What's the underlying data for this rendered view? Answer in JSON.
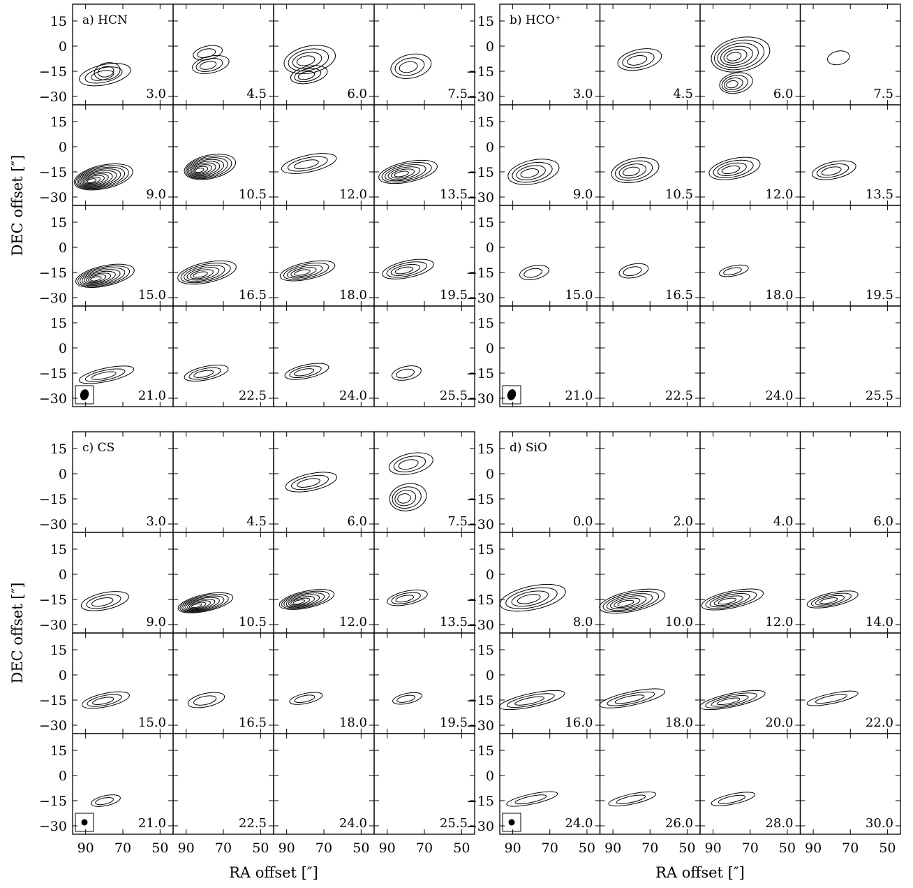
{
  "chart_data": [
    {
      "type": "contour",
      "panel_label": "a) HCN",
      "velocities": [
        "3.0",
        "4.5",
        "6.0",
        "7.5",
        "9.0",
        "10.5",
        "12.0",
        "13.5",
        "15.0",
        "16.5",
        "18.0",
        "19.5",
        "21.0",
        "22.5",
        "24.0",
        "25.5"
      ],
      "ylabel": "DEC offset [″]",
      "xlabel": "",
      "xlim": [
        97,
        43
      ],
      "ylim": [
        -35,
        25
      ],
      "xticks": [
        "90",
        "70",
        "50"
      ],
      "yticks": [
        "15",
        "0",
        "−15",
        "−30"
      ],
      "beam_shown": true,
      "blobs": [
        [
          [
            -18,
            -17,
            6,
            14,
            3
          ],
          [
            -15,
            -15,
            5,
            7,
            2
          ]
        ],
        [
          [
            -11,
            -11,
            5,
            10,
            3
          ],
          [
            -15,
            -4,
            4,
            8,
            2
          ]
        ],
        [
          [
            -13,
            -8,
            8,
            14,
            4
          ],
          [
            -14,
            -17,
            5,
            10,
            3
          ]
        ],
        [
          [
            -12,
            -12,
            7,
            11,
            3
          ]
        ],
        [
          [
            -20,
            -18,
            7,
            16,
            10
          ]
        ],
        [
          [
            -12,
            -12,
            7,
            14,
            9
          ]
        ],
        [
          [
            -14,
            -10,
            5,
            15,
            3
          ]
        ],
        [
          [
            -16,
            -15,
            6,
            16,
            6
          ]
        ],
        [
          [
            -18,
            -17,
            6,
            16,
            8
          ]
        ],
        [
          [
            -16,
            -15,
            6,
            16,
            6
          ]
        ],
        [
          [
            -16,
            -14,
            5,
            15,
            5
          ]
        ],
        [
          [
            -16,
            -13,
            5,
            14,
            4
          ]
        ],
        [
          [
            -16,
            -16,
            4,
            15,
            3
          ]
        ],
        [
          [
            -17,
            -15,
            4,
            12,
            3
          ]
        ],
        [
          [
            -17,
            -14,
            4,
            12,
            3
          ]
        ],
        [
          [
            -18,
            -15,
            4,
            8,
            2
          ]
        ]
      ]
    },
    {
      "type": "contour",
      "panel_label": "b) HCO⁺",
      "velocities": [
        "3.0",
        "4.5",
        "6.0",
        "7.5",
        "9.0",
        "10.5",
        "12.0",
        "13.5",
        "15.0",
        "16.5",
        "18.0",
        "19.5",
        "21.0",
        "22.5",
        "24.0",
        "25.5"
      ],
      "ylabel": "",
      "xlabel": "",
      "xlim": [
        97,
        43
      ],
      "ylim": [
        -35,
        25
      ],
      "xticks": [
        "90",
        "70",
        "50"
      ],
      "yticks": [
        "15",
        "0",
        "−15",
        "−30"
      ],
      "beam_shown": true,
      "blobs": [
        [],
        [
          [
            -8,
            -8,
            6,
            12,
            3
          ]
        ],
        [
          [
            -7,
            -5,
            10,
            16,
            6
          ],
          [
            -13,
            -22,
            6,
            9,
            4
          ]
        ],
        [
          [
            -10,
            -7,
            4,
            6,
            1
          ]
        ],
        [
          [
            -16,
            -15,
            7,
            14,
            4
          ]
        ],
        [
          [
            -14,
            -14,
            7,
            13,
            4
          ]
        ],
        [
          [
            -15,
            -13,
            6,
            14,
            4
          ]
        ],
        [
          [
            -16,
            -14,
            5,
            12,
            3
          ]
        ],
        [
          [
            -15,
            -15,
            4,
            8,
            2
          ]
        ],
        [
          [
            -16,
            -14,
            4,
            8,
            2
          ]
        ],
        [
          [
            -16,
            -14,
            3,
            8,
            2
          ]
        ],
        [],
        [],
        [],
        [],
        []
      ]
    },
    {
      "type": "contour",
      "panel_label": "c) CS",
      "velocities": [
        "3.0",
        "4.5",
        "6.0",
        "7.5",
        "9.0",
        "10.5",
        "12.0",
        "13.5",
        "15.0",
        "16.5",
        "18.0",
        "19.5",
        "21.0",
        "22.5",
        "24.0",
        "25.5"
      ],
      "ylabel": "DEC offset [″]",
      "xlabel": "RA offset [″]",
      "xlim": [
        97,
        43
      ],
      "ylim": [
        -35,
        25
      ],
      "xticks": [
        "90",
        "70",
        "50"
      ],
      "yticks": [
        "15",
        "0",
        "−15",
        "−30"
      ],
      "beam_shown": true,
      "blobs": [
        [],
        [],
        [
          [
            -11,
            -5,
            5,
            14,
            3
          ]
        ],
        [
          [
            -16,
            -14,
            8,
            10,
            4
          ],
          [
            -12,
            6,
            6,
            12,
            3
          ]
        ],
        [
          [
            -18,
            -16,
            5,
            13,
            3
          ]
        ],
        [
          [
            -18,
            -17,
            5,
            15,
            8
          ]
        ],
        [
          [
            -17,
            -15,
            5,
            15,
            7
          ]
        ],
        [
          [
            -17,
            -14,
            4,
            11,
            3
          ]
        ],
        [
          [
            -17,
            -15,
            4,
            13,
            3
          ]
        ],
        [
          [
            -17,
            -15,
            4,
            10,
            2
          ]
        ],
        [
          [
            -18,
            -14,
            3,
            9,
            2
          ]
        ],
        [
          [
            -17,
            -14,
            3,
            8,
            2
          ]
        ],
        [
          [
            -17,
            -15,
            3,
            8,
            2
          ]
        ],
        [],
        [],
        []
      ]
    },
    {
      "type": "contour",
      "panel_label": "d) SiO",
      "velocities": [
        "0.0",
        "2.0",
        "4.0",
        "6.0",
        "8.0",
        "10.0",
        "12.0",
        "14.0",
        "16.0",
        "18.0",
        "20.0",
        "22.0",
        "24.0",
        "26.0",
        "28.0",
        "30.0"
      ],
      "ylabel": "",
      "xlabel": "RA offset [″]",
      "xlim": [
        97,
        43
      ],
      "ylim": [
        -35,
        25
      ],
      "xticks": [
        "90",
        "70",
        "50"
      ],
      "yticks": [
        "15",
        "0",
        "−15",
        "−30"
      ],
      "beam_shown": true,
      "blobs": [
        [],
        [],
        [],
        [],
        [
          [
            -17,
            -14,
            7,
            18,
            4
          ]
        ],
        [
          [
            -18,
            -16,
            6,
            18,
            6
          ]
        ],
        [
          [
            -18,
            -15,
            5,
            17,
            5
          ]
        ],
        [
          [
            -18,
            -15,
            4,
            14,
            4
          ]
        ],
        [
          [
            -18,
            -15,
            4,
            18,
            3
          ]
        ],
        [
          [
            -18,
            -14,
            4,
            18,
            3
          ]
        ],
        [
          [
            -18,
            -15,
            4,
            18,
            4
          ]
        ],
        [
          [
            -18,
            -14,
            3,
            14,
            2
          ]
        ],
        [
          [
            -18,
            -14,
            3,
            14,
            2
          ]
        ],
        [
          [
            -18,
            -14,
            3,
            13,
            2
          ]
        ],
        [
          [
            -17,
            -14,
            3,
            12,
            2
          ]
        ],
        []
      ]
    }
  ]
}
